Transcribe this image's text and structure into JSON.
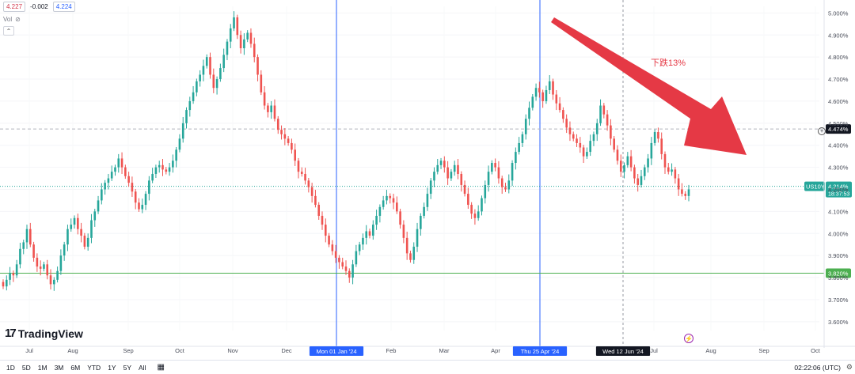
{
  "header": {
    "bid": "4.227",
    "change": "-0.002",
    "ask": "4.224",
    "vol_label": "Vol",
    "collapse_icon": "chevron-up-icon"
  },
  "logo": {
    "mark": "17",
    "text": "TradingView"
  },
  "annotation": {
    "text": "下跌13%",
    "color": "#e53945"
  },
  "bottombar": {
    "ranges": [
      "1D",
      "5D",
      "1M",
      "3M",
      "6M",
      "YTD",
      "1Y",
      "5Y",
      "All"
    ],
    "clock": "02:22:06 (UTC)",
    "calendar_icon": "calendar-icon",
    "settings_icon": "gear-icon"
  },
  "chart_data": {
    "type": "candlestick",
    "symbol": "US10Y",
    "y_ticks": [
      "5.000%",
      "4.900%",
      "4.800%",
      "4.700%",
      "4.600%",
      "4.500%",
      "4.400%",
      "4.300%",
      "4.200%",
      "4.100%",
      "4.000%",
      "3.900%",
      "3.800%",
      "3.700%",
      "3.600%"
    ],
    "ylim": [
      3.56,
      5.03
    ],
    "x_ticks": [
      "Jul",
      "Aug",
      "Sep",
      "Oct",
      "Nov",
      "Dec",
      "Feb",
      "Mar",
      "Apr",
      "Jul",
      "Aug",
      "Sep",
      "Oct"
    ],
    "x_highlights": [
      "Mon 01 Jan '24",
      "Thu 25 Apr '24",
      "Wed 12 Jun '24"
    ],
    "last_price": {
      "symbol": "US10Y",
      "value": "4.214%",
      "countdown": "18:37:53",
      "level": 4.214
    },
    "horizontal_levels": [
      {
        "label": "4.474%",
        "value": 4.474,
        "style": "dashed"
      },
      {
        "label": "3.820%",
        "value": 3.82,
        "style": "solid",
        "color": "#4caf50"
      }
    ],
    "vertical_lines": [
      "Mon 01 Jan '24",
      "Thu 25 Apr '24"
    ],
    "up_color": "#26a69a",
    "down_color": "#ef5350",
    "arrow_color": "#e53945",
    "closes": [
      3.76,
      3.79,
      3.82,
      3.81,
      3.86,
      3.93,
      3.96,
      4.02,
      3.95,
      3.89,
      3.85,
      3.84,
      3.86,
      3.81,
      3.77,
      3.79,
      3.83,
      3.9,
      3.95,
      4.02,
      4.04,
      4.07,
      4.02,
      3.99,
      3.94,
      3.98,
      4.06,
      4.1,
      4.15,
      4.2,
      4.23,
      4.25,
      4.28,
      4.3,
      4.34,
      4.3,
      4.26,
      4.23,
      4.19,
      4.14,
      4.11,
      4.13,
      4.18,
      4.24,
      4.27,
      4.3,
      4.31,
      4.29,
      4.28,
      4.3,
      4.33,
      4.38,
      4.43,
      4.5,
      4.56,
      4.6,
      4.64,
      4.69,
      4.72,
      4.76,
      4.8,
      4.72,
      4.66,
      4.7,
      4.75,
      4.81,
      4.87,
      4.93,
      4.98,
      4.9,
      4.84,
      4.88,
      4.91,
      4.86,
      4.8,
      4.72,
      4.64,
      4.58,
      4.55,
      4.58,
      4.52,
      4.47,
      4.45,
      4.43,
      4.41,
      4.38,
      4.33,
      4.28,
      4.27,
      4.24,
      4.21,
      4.17,
      4.13,
      4.08,
      4.04,
      3.99,
      3.95,
      3.92,
      3.89,
      3.87,
      3.85,
      3.83,
      3.8,
      3.86,
      3.92,
      3.95,
      3.98,
      4.01,
      3.99,
      4.04,
      4.08,
      4.12,
      4.15,
      4.17,
      4.16,
      4.14,
      4.1,
      4.04,
      3.98,
      3.91,
      3.88,
      3.94,
      4.02,
      4.08,
      4.12,
      4.18,
      4.24,
      4.28,
      4.31,
      4.33,
      4.3,
      4.25,
      4.28,
      4.31,
      4.27,
      4.22,
      4.18,
      4.13,
      4.09,
      4.07,
      4.1,
      4.16,
      4.22,
      4.28,
      4.32,
      4.3,
      4.25,
      4.21,
      4.2,
      4.24,
      4.32,
      4.37,
      4.41,
      4.45,
      4.52,
      4.57,
      4.62,
      4.66,
      4.64,
      4.6,
      4.65,
      4.69,
      4.63,
      4.59,
      4.56,
      4.52,
      4.48,
      4.45,
      4.43,
      4.41,
      4.39,
      4.35,
      4.37,
      4.42,
      4.45,
      4.5,
      4.58,
      4.54,
      4.49,
      4.43,
      4.38,
      4.33,
      4.28,
      4.31,
      4.35,
      4.3,
      4.25,
      4.22,
      4.26,
      4.3,
      4.34,
      4.41,
      4.46,
      4.43,
      4.36,
      4.3,
      4.28,
      4.29,
      4.25,
      4.2,
      4.18,
      4.17,
      4.2
    ]
  }
}
